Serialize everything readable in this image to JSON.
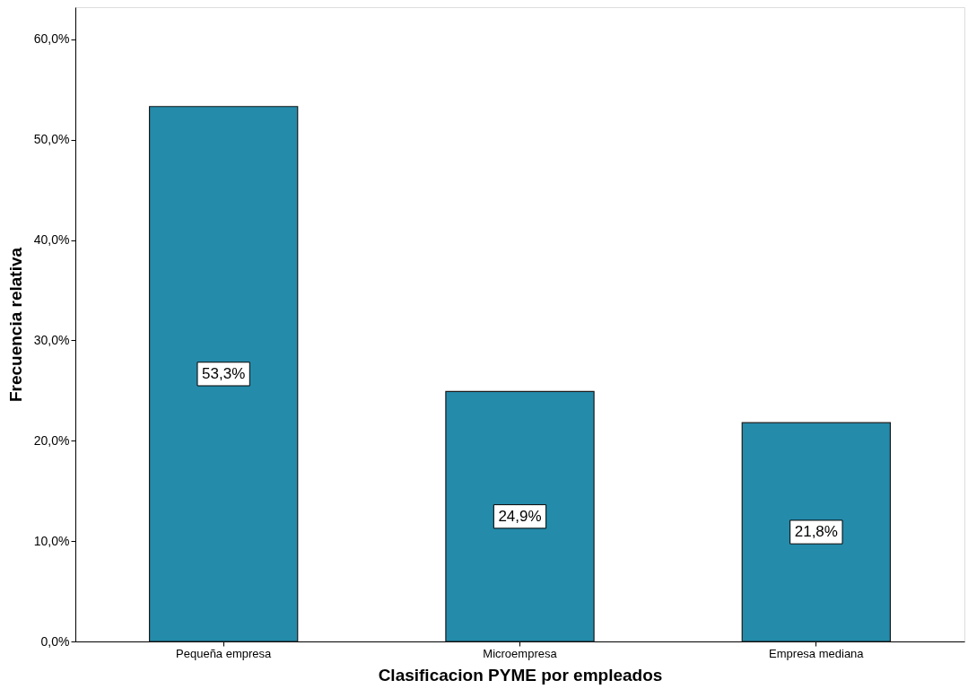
{
  "chart_data": {
    "type": "bar",
    "xlabel": "Clasificacion PYME por empleados",
    "ylabel": "Frecuencia relativa",
    "categories": [
      "Pequeña empresa",
      "Microempresa",
      "Empresa mediana"
    ],
    "values": [
      53.3,
      24.9,
      21.8
    ],
    "value_labels": [
      "53,3%",
      "24,9%",
      "21,8%"
    ],
    "color": "#248bab",
    "ylim": [
      0,
      63.2
    ],
    "yticks": [
      {
        "value": 0,
        "label": "0,0%"
      },
      {
        "value": 10,
        "label": "10,0%"
      },
      {
        "value": 20,
        "label": "20,0%"
      },
      {
        "value": 30,
        "label": "30,0%"
      },
      {
        "value": 40,
        "label": "40,0%"
      },
      {
        "value": 50,
        "label": "50,0%"
      },
      {
        "value": 60,
        "label": "60,0%"
      }
    ],
    "grid": false
  }
}
